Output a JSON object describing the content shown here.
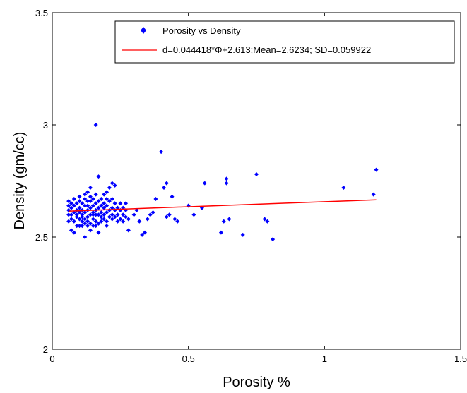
{
  "chart_data": {
    "type": "scatter",
    "title": "",
    "xlabel": "Porosity %",
    "ylabel": "Density (gm/cc)",
    "xlim": [
      0,
      1.5
    ],
    "ylim": [
      2,
      3.5
    ],
    "x_ticks": [
      "0",
      "0.5",
      "1",
      "1.5"
    ],
    "y_ticks": [
      "2",
      "2.5",
      "3",
      "3.5"
    ],
    "legend_position": "top-right",
    "grid": false,
    "series": [
      {
        "name": "Porosity vs Density",
        "type": "scatter",
        "color": "#0000ff",
        "marker": "diamond",
        "points": [
          [
            0.06,
            2.57
          ],
          [
            0.06,
            2.6
          ],
          [
            0.06,
            2.62
          ],
          [
            0.06,
            2.64
          ],
          [
            0.06,
            2.66
          ],
          [
            0.07,
            2.6
          ],
          [
            0.07,
            2.63
          ],
          [
            0.07,
            2.65
          ],
          [
            0.07,
            2.53
          ],
          [
            0.07,
            2.58
          ],
          [
            0.08,
            2.61
          ],
          [
            0.08,
            2.64
          ],
          [
            0.08,
            2.57
          ],
          [
            0.08,
            2.52
          ],
          [
            0.08,
            2.67
          ],
          [
            0.09,
            2.6
          ],
          [
            0.09,
            2.62
          ],
          [
            0.09,
            2.55
          ],
          [
            0.09,
            2.65
          ],
          [
            0.09,
            2.59
          ],
          [
            0.1,
            2.58
          ],
          [
            0.1,
            2.61
          ],
          [
            0.1,
            2.63
          ],
          [
            0.1,
            2.66
          ],
          [
            0.1,
            2.55
          ],
          [
            0.1,
            2.68
          ],
          [
            0.11,
            2.57
          ],
          [
            0.11,
            2.6
          ],
          [
            0.11,
            2.62
          ],
          [
            0.11,
            2.65
          ],
          [
            0.11,
            2.59
          ],
          [
            0.11,
            2.55
          ],
          [
            0.12,
            2.56
          ],
          [
            0.12,
            2.58
          ],
          [
            0.12,
            2.61
          ],
          [
            0.12,
            2.64
          ],
          [
            0.12,
            2.67
          ],
          [
            0.12,
            2.5
          ],
          [
            0.12,
            2.69
          ],
          [
            0.13,
            2.55
          ],
          [
            0.13,
            2.59
          ],
          [
            0.13,
            2.62
          ],
          [
            0.13,
            2.64
          ],
          [
            0.13,
            2.66
          ],
          [
            0.13,
            2.7
          ],
          [
            0.13,
            2.57
          ],
          [
            0.14,
            2.56
          ],
          [
            0.14,
            2.6
          ],
          [
            0.14,
            2.63
          ],
          [
            0.14,
            2.66
          ],
          [
            0.14,
            2.68
          ],
          [
            0.14,
            2.53
          ],
          [
            0.14,
            2.72
          ],
          [
            0.15,
            2.55
          ],
          [
            0.15,
            2.58
          ],
          [
            0.15,
            2.61
          ],
          [
            0.15,
            2.64
          ],
          [
            0.15,
            2.67
          ],
          [
            0.15,
            2.6
          ],
          [
            0.16,
            2.57
          ],
          [
            0.16,
            2.6
          ],
          [
            0.16,
            2.62
          ],
          [
            0.16,
            2.65
          ],
          [
            0.16,
            2.69
          ],
          [
            0.16,
            2.55
          ],
          [
            0.16,
            3.0
          ],
          [
            0.17,
            2.56
          ],
          [
            0.17,
            2.6
          ],
          [
            0.17,
            2.63
          ],
          [
            0.17,
            2.66
          ],
          [
            0.17,
            2.77
          ],
          [
            0.17,
            2.52
          ],
          [
            0.18,
            2.57
          ],
          [
            0.18,
            2.61
          ],
          [
            0.18,
            2.64
          ],
          [
            0.18,
            2.67
          ],
          [
            0.18,
            2.59
          ],
          [
            0.19,
            2.58
          ],
          [
            0.19,
            2.6
          ],
          [
            0.19,
            2.63
          ],
          [
            0.19,
            2.65
          ],
          [
            0.19,
            2.69
          ],
          [
            0.2,
            2.57
          ],
          [
            0.2,
            2.61
          ],
          [
            0.2,
            2.64
          ],
          [
            0.2,
            2.67
          ],
          [
            0.2,
            2.55
          ],
          [
            0.2,
            2.7
          ],
          [
            0.21,
            2.59
          ],
          [
            0.21,
            2.62
          ],
          [
            0.21,
            2.66
          ],
          [
            0.21,
            2.72
          ],
          [
            0.22,
            2.58
          ],
          [
            0.22,
            2.6
          ],
          [
            0.22,
            2.63
          ],
          [
            0.22,
            2.67
          ],
          [
            0.22,
            2.74
          ],
          [
            0.23,
            2.59
          ],
          [
            0.23,
            2.62
          ],
          [
            0.23,
            2.65
          ],
          [
            0.23,
            2.73
          ],
          [
            0.24,
            2.6
          ],
          [
            0.24,
            2.63
          ],
          [
            0.24,
            2.57
          ],
          [
            0.25,
            2.58
          ],
          [
            0.25,
            2.62
          ],
          [
            0.25,
            2.65
          ],
          [
            0.26,
            2.6
          ],
          [
            0.26,
            2.63
          ],
          [
            0.26,
            2.57
          ],
          [
            0.27,
            2.59
          ],
          [
            0.27,
            2.62
          ],
          [
            0.27,
            2.65
          ],
          [
            0.28,
            2.53
          ],
          [
            0.28,
            2.58
          ],
          [
            0.3,
            2.6
          ],
          [
            0.31,
            2.62
          ],
          [
            0.32,
            2.57
          ],
          [
            0.33,
            2.51
          ],
          [
            0.34,
            2.52
          ],
          [
            0.35,
            2.58
          ],
          [
            0.36,
            2.6
          ],
          [
            0.37,
            2.61
          ],
          [
            0.38,
            2.67
          ],
          [
            0.4,
            2.88
          ],
          [
            0.41,
            2.72
          ],
          [
            0.42,
            2.74
          ],
          [
            0.42,
            2.59
          ],
          [
            0.43,
            2.6
          ],
          [
            0.44,
            2.68
          ],
          [
            0.45,
            2.58
          ],
          [
            0.46,
            2.57
          ],
          [
            0.5,
            2.64
          ],
          [
            0.52,
            2.6
          ],
          [
            0.55,
            2.63
          ],
          [
            0.56,
            2.74
          ],
          [
            0.62,
            2.52
          ],
          [
            0.63,
            2.57
          ],
          [
            0.64,
            2.76
          ],
          [
            0.64,
            2.74
          ],
          [
            0.65,
            2.58
          ],
          [
            0.7,
            2.51
          ],
          [
            0.75,
            2.78
          ],
          [
            0.78,
            2.58
          ],
          [
            0.79,
            2.57
          ],
          [
            0.81,
            2.49
          ],
          [
            1.07,
            2.72
          ],
          [
            1.18,
            2.69
          ],
          [
            1.19,
            2.8
          ]
        ]
      },
      {
        "name": "d=0.044418*Φ+2.613;Mean=2.6234; SD=0.059922",
        "type": "line",
        "color": "#ff0000",
        "points": [
          [
            0.06,
            2.6157
          ],
          [
            1.19,
            2.6659
          ]
        ]
      }
    ]
  }
}
